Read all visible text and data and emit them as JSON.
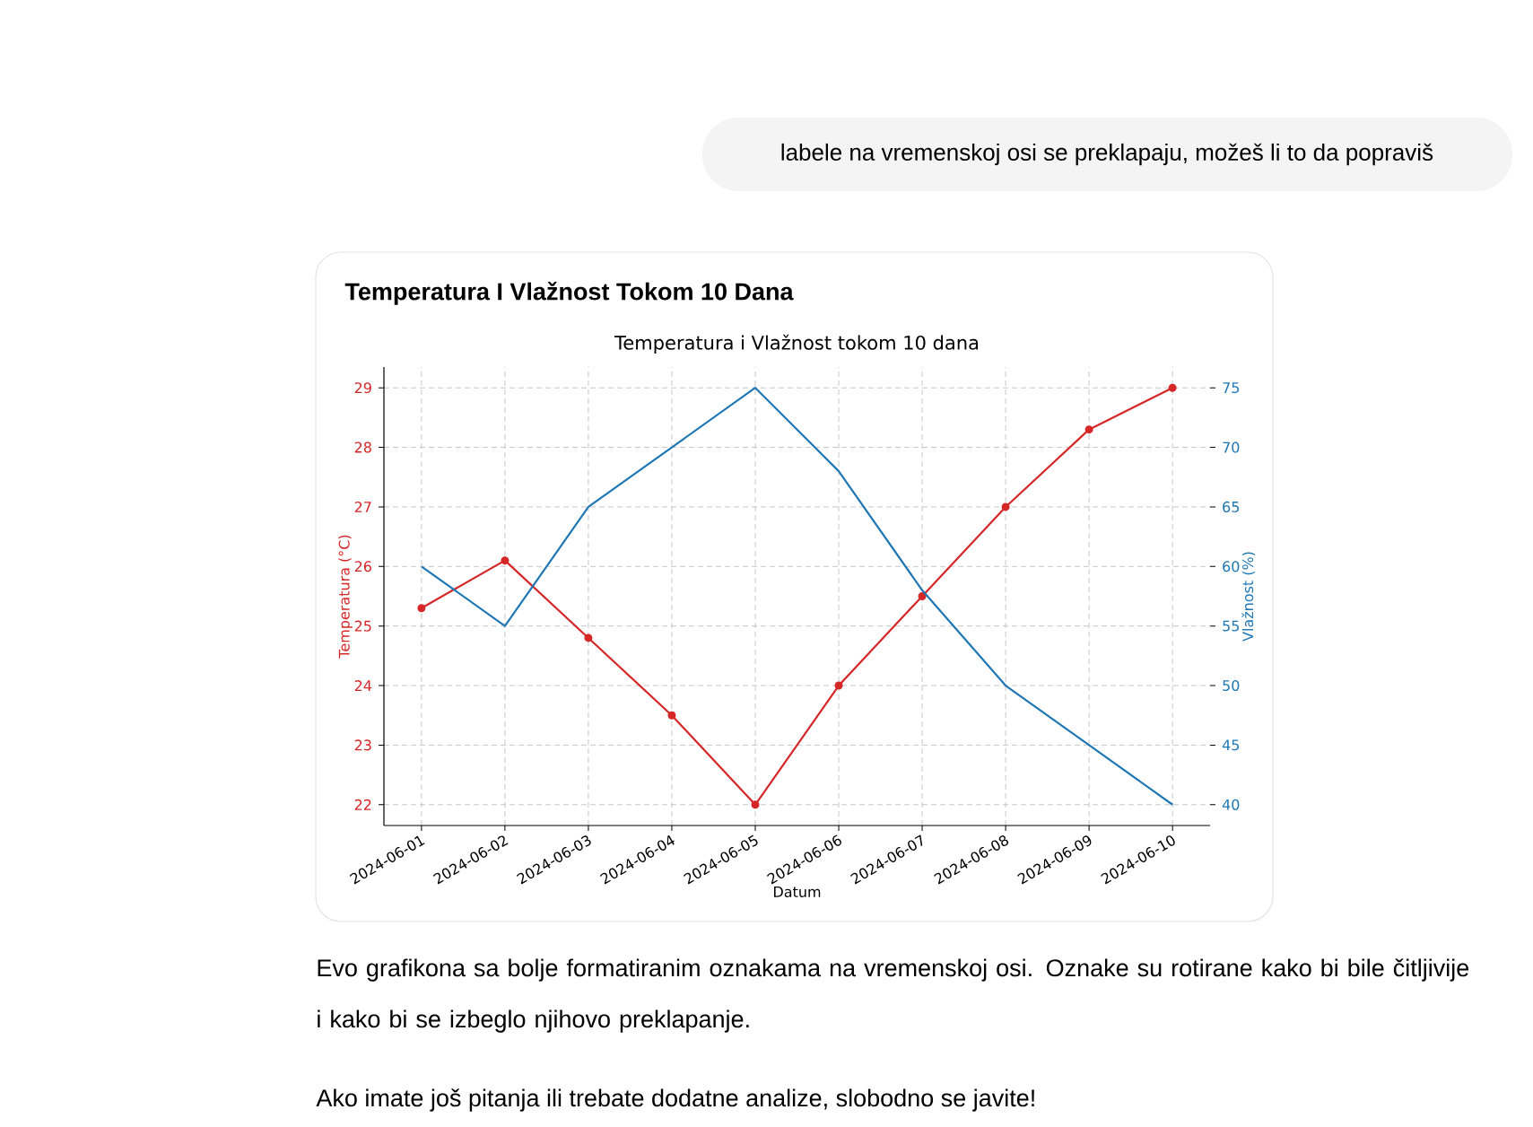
{
  "chart_data": {
    "type": "line",
    "title": "Temperatura I Vlažnost Tokom 10 Dana",
    "subtitle": "Temperatura i Vlažnost tokom 10 dana",
    "xlabel": "Datum",
    "ylabel": "Temperatura (°C)",
    "y2label": "Vlažnost (%)",
    "categories": [
      "2024-06-01",
      "2024-06-02",
      "2024-06-03",
      "2024-06-04",
      "2024-06-05",
      "2024-06-06",
      "2024-06-07",
      "2024-06-08",
      "2024-06-09",
      "2024-06-10"
    ],
    "series": [
      {
        "color": "#d62728",
        "values": [
          25.3,
          26.1,
          24.8,
          23.5,
          22.0,
          24.0,
          25.5,
          27.0,
          28.3,
          29.0
        ],
        "marker": "circle"
      },
      {
        "color": "#1f77b4",
        "values": [
          60,
          55,
          65,
          70,
          75,
          68,
          58,
          50,
          45,
          40
        ],
        "axis": "y2",
        "marker": "none"
      }
    ],
    "ylim": [
      21.65,
      29.35
    ],
    "yticks": [
      22,
      23,
      24,
      25,
      26,
      27,
      28,
      29
    ],
    "y2lim": [
      38.25,
      76.75
    ],
    "y2ticks": [
      40,
      45,
      50,
      55,
      60,
      65,
      70,
      75
    ],
    "grid": true,
    "annotations": [
      "labele na vremenskoj osi se preklapaju, možeš li to da popraviš",
      "Evo grafikona sa bolje formatiranim oznakama na vremenskoj osi. Oznake su rotirane kako bi bile čitljivije i kako bi se izbeglo njihovo preklapanje.",
      "Ako imate još pitanja ili trebate dodatne analize, slobodno se javite!"
    ]
  }
}
